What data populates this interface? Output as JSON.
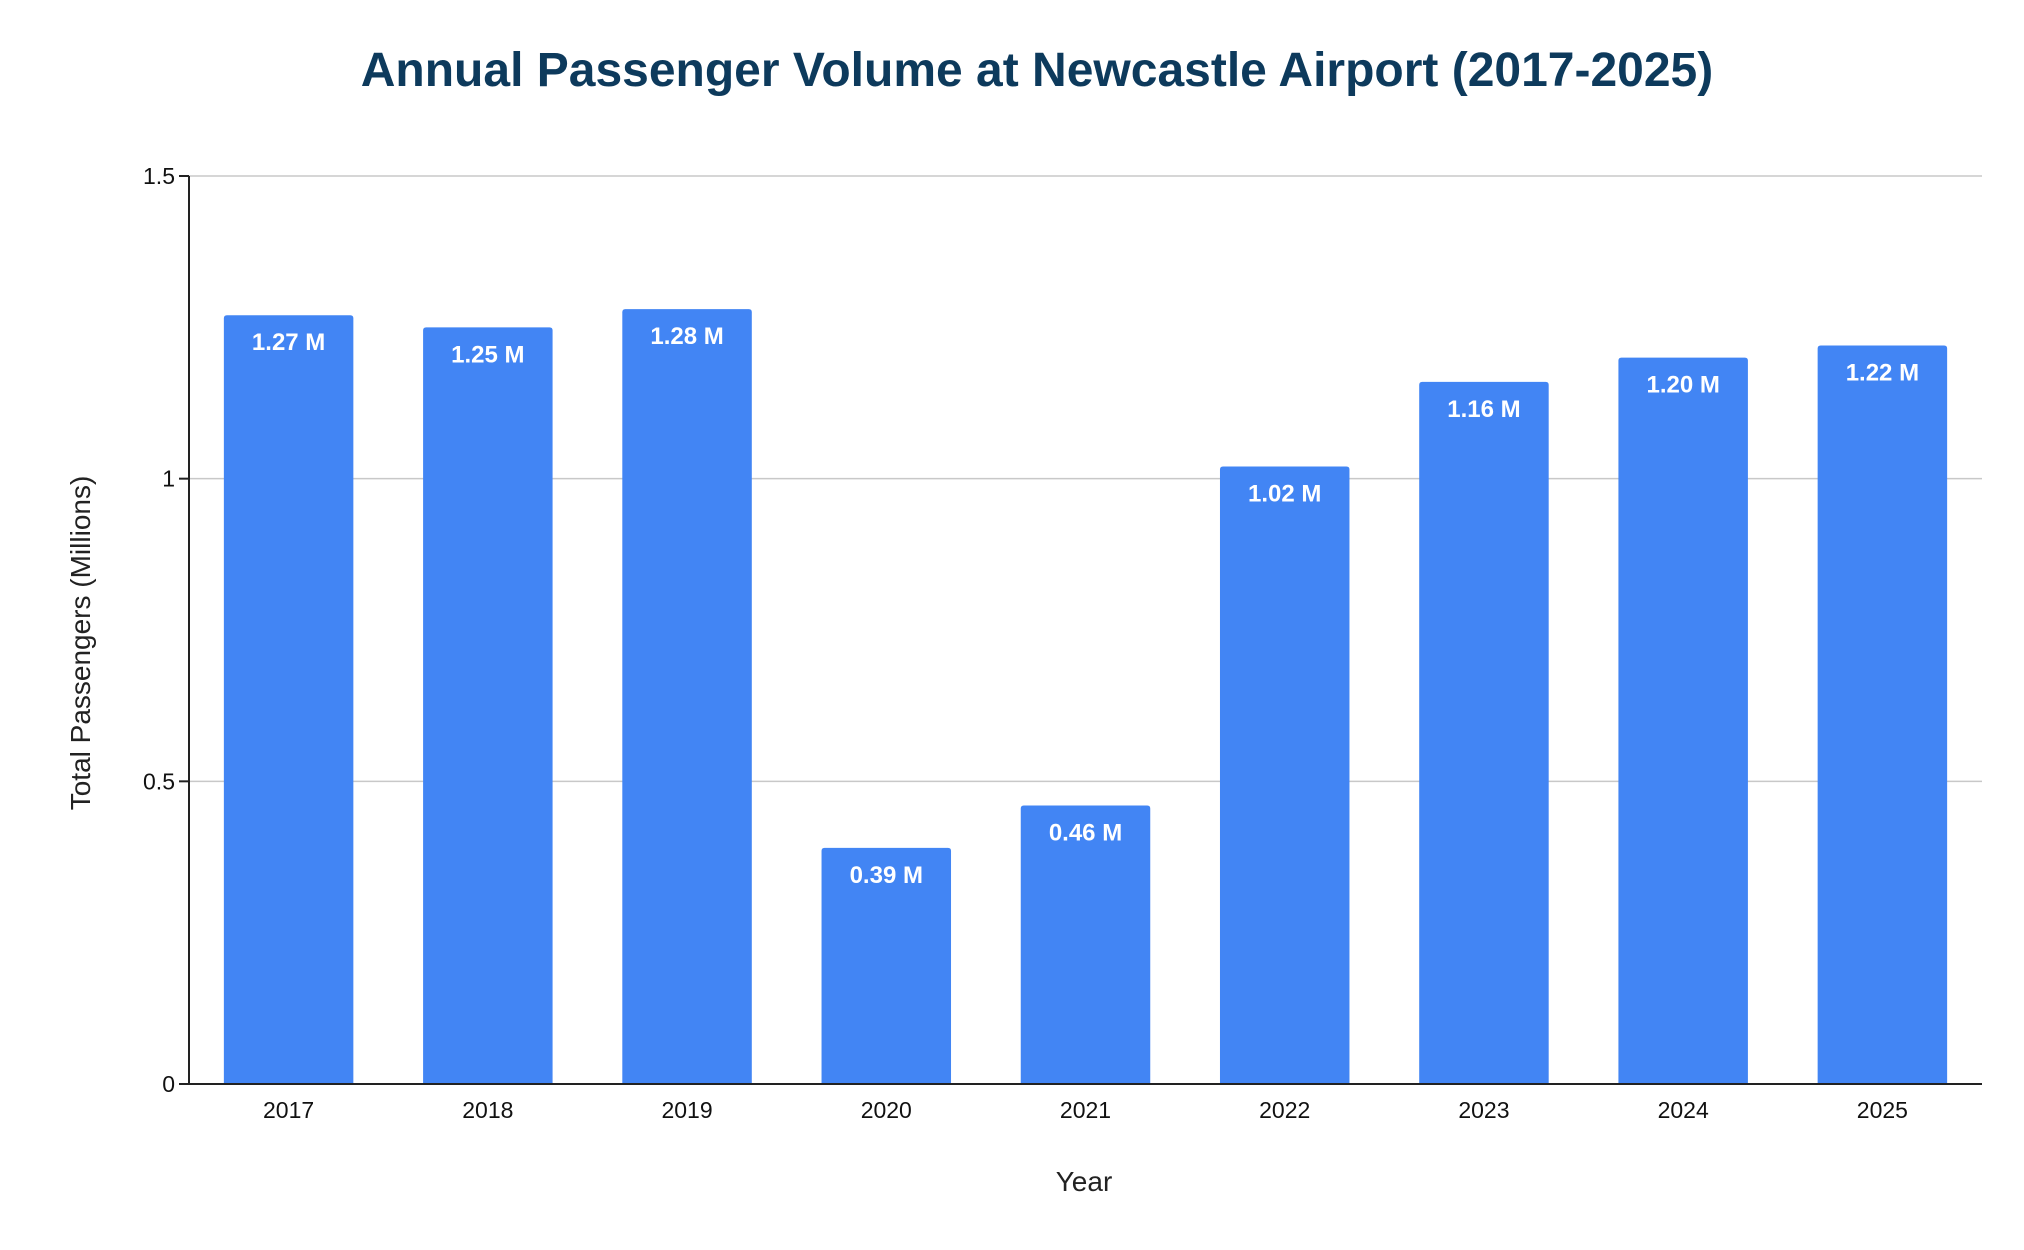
{
  "chart_data": {
    "type": "bar",
    "title": "Annual Passenger Volume at Newcastle Airport (2017-2025)",
    "xlabel": "Year",
    "ylabel": "Total Passengers (Millions)",
    "categories": [
      "2017",
      "2018",
      "2019",
      "2020",
      "2021",
      "2022",
      "2023",
      "2024",
      "2025"
    ],
    "values": [
      1.27,
      1.25,
      1.28,
      0.39,
      0.46,
      1.02,
      1.16,
      1.2,
      1.22
    ],
    "data_labels": [
      "1.27 M",
      "1.25 M",
      "1.28 M",
      "0.39 M",
      "0.46 M",
      "1.02 M",
      "1.16 M",
      "1.20 M",
      "1.22 M"
    ],
    "ylim": [
      0,
      1.5
    ],
    "yticks": [
      0,
      0.5,
      1,
      1.5
    ],
    "ytick_labels": [
      "0",
      "0.5",
      "1",
      "1.5"
    ],
    "grid": true,
    "legend": "none",
    "bar_color": "#4285f4",
    "title_color": "#0d3a5c"
  }
}
